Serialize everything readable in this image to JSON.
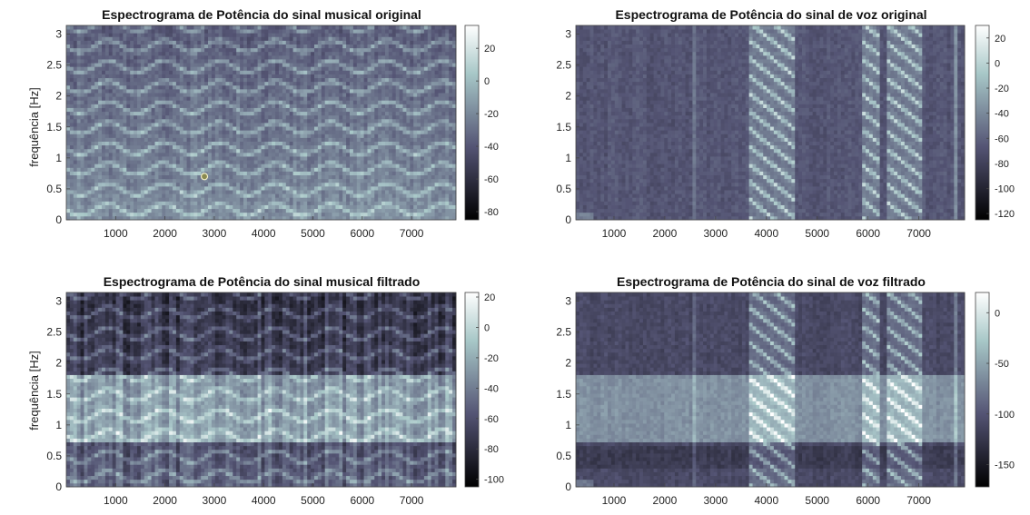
{
  "chart_data": [
    {
      "type": "heatmap",
      "title": "Espectrograma de Potência do sinal musical original",
      "ylabel": "frequência [Hz]",
      "xlabel": "",
      "xlim": [
        0,
        7900
      ],
      "ylim": [
        0,
        3.14
      ],
      "xticks": [
        1000,
        2000,
        3000,
        4000,
        5000,
        6000,
        7000
      ],
      "yticks": [
        0,
        0.5,
        1,
        1.5,
        2,
        2.5,
        3
      ],
      "colorbar": {
        "range": [
          -85,
          34
        ],
        "ticks": [
          20,
          0,
          -20,
          -40,
          -60,
          -80
        ]
      },
      "energy": "harmonic",
      "marker": {
        "x": 2800,
        "y": 0.7
      }
    },
    {
      "type": "heatmap",
      "title": "Espectrograma de Potência do sinal de voz original",
      "ylabel": "",
      "xlabel": "",
      "xlim": [
        250,
        7900
      ],
      "ylim": [
        0,
        3.14
      ],
      "xticks": [
        1000,
        2000,
        3000,
        4000,
        5000,
        6000,
        7000
      ],
      "yticks": [
        0,
        0.5,
        1,
        1.5,
        2,
        2.5,
        3
      ],
      "colorbar": {
        "range": [
          -125,
          30
        ],
        "ticks": [
          20,
          0,
          -20,
          -40,
          -60,
          -80,
          -100,
          -120
        ]
      },
      "energy": "voice",
      "voiced_segments": [
        [
          3650,
          4550
        ],
        [
          5900,
          6250
        ],
        [
          6400,
          7050
        ]
      ]
    },
    {
      "type": "heatmap",
      "title": "Espectrograma de Potência do sinal musical filtrado",
      "ylabel": "frequência [Hz]",
      "xlabel": "",
      "xlim": [
        0,
        7900
      ],
      "ylim": [
        0,
        3.14
      ],
      "xticks": [
        1000,
        2000,
        3000,
        4000,
        5000,
        6000,
        7000
      ],
      "yticks": [
        0,
        0.5,
        1,
        1.5,
        2,
        2.5,
        3
      ],
      "colorbar": {
        "range": [
          -105,
          23
        ],
        "ticks": [
          20,
          0,
          -20,
          -40,
          -60,
          -80,
          -100
        ]
      },
      "energy": "filtered-harmonic",
      "passband": [
        0.75,
        1.8
      ]
    },
    {
      "type": "heatmap",
      "title": "Espectrograma de Potência do sinal de voz filtrado",
      "ylabel": "",
      "xlabel": "",
      "xlim": [
        250,
        7900
      ],
      "ylim": [
        0,
        3.14
      ],
      "xticks": [
        1000,
        2000,
        3000,
        4000,
        5000,
        6000,
        7000
      ],
      "yticks": [
        0,
        0.5,
        1,
        1.5,
        2,
        2.5,
        3
      ],
      "colorbar": {
        "range": [
          -172,
          20
        ],
        "ticks": [
          0,
          -50,
          -100,
          -150
        ]
      },
      "energy": "filtered-voice",
      "passband": [
        0.75,
        1.8
      ],
      "voiced_segments": [
        [
          3650,
          4550
        ],
        [
          5900,
          6250
        ],
        [
          6400,
          7050
        ]
      ]
    }
  ]
}
